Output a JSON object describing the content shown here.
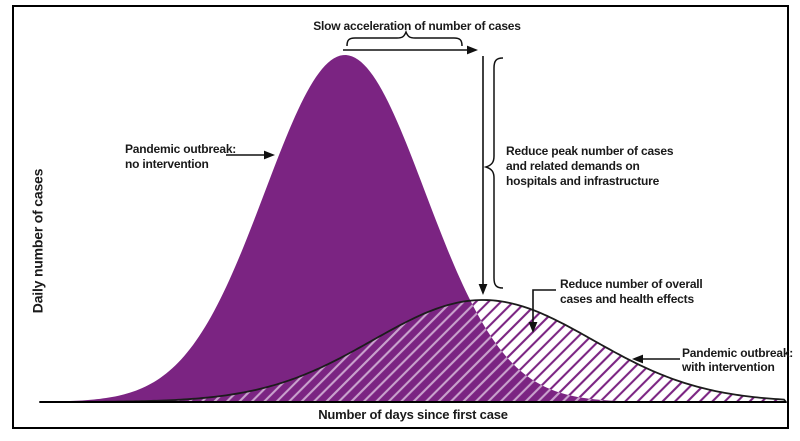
{
  "figure": {
    "background": "#ffffff",
    "border_color": "#000000"
  },
  "colors": {
    "curve_fill": "#7b2482",
    "hatch_line": "#7b2482",
    "hatch_line_on_fill": "#c9a2cd",
    "curve_outline": "#1c1c1c",
    "axis": "#000000",
    "text": "#1a1a1a"
  },
  "labels": {
    "slow_acceleration": "Slow acceleration of number of cases",
    "pandemic_no_intervention": "Pandemic outbreak:\nno intervention",
    "reduce_peak": "Reduce peak number of cases\nand related demands on\nhospitals and infrastructure",
    "reduce_overall": "Reduce number of overall\ncases and health effects",
    "pandemic_with_intervention": "Pandemic outbreak:\nwith intervention",
    "xlabel": "Number of days since first case",
    "ylabel": "Daily number of cases"
  },
  "chart_data": {
    "type": "area",
    "title": "",
    "xlabel": "Number of days since first case",
    "ylabel": "Daily number of cases",
    "axes": {
      "x_ticks": "none",
      "y_ticks": "none",
      "baseline_only": true
    },
    "series": [
      {
        "name": "Pandemic outbreak: no intervention",
        "shape": "gaussian",
        "center_frac": 0.4088,
        "sigma_frac": 0.1072,
        "peak_frac": 1.0,
        "style": "solid",
        "color": "#7b2482"
      },
      {
        "name": "Pandemic outbreak: with intervention",
        "shape": "gaussian",
        "center_frac": 0.5938,
        "sigma_frac": 0.1475,
        "peak_frac": 0.294,
        "style": "hatched",
        "hatch_color": "#7b2482",
        "outline_color": "#1c1c1c"
      }
    ],
    "annotations": [
      {
        "text": "Slow acceleration of number of cases",
        "kind": "brace-over-arrow",
        "points_at": "early growth of intervention curve"
      },
      {
        "text": "Reduce peak number of cases and related demands on hospitals and infrastructure",
        "kind": "vertical-arrow-with-brace",
        "points_at": "gap between the two peaks"
      },
      {
        "text": "Reduce number of overall cases and health effects",
        "kind": "elbow-arrow",
        "points_at": "hatched area"
      },
      {
        "text": "Pandemic outbreak: no intervention",
        "kind": "arrow",
        "points_at": "solid curve"
      },
      {
        "text": "Pandemic outbreak: with intervention",
        "kind": "arrow",
        "points_at": "hatched curve"
      }
    ]
  }
}
